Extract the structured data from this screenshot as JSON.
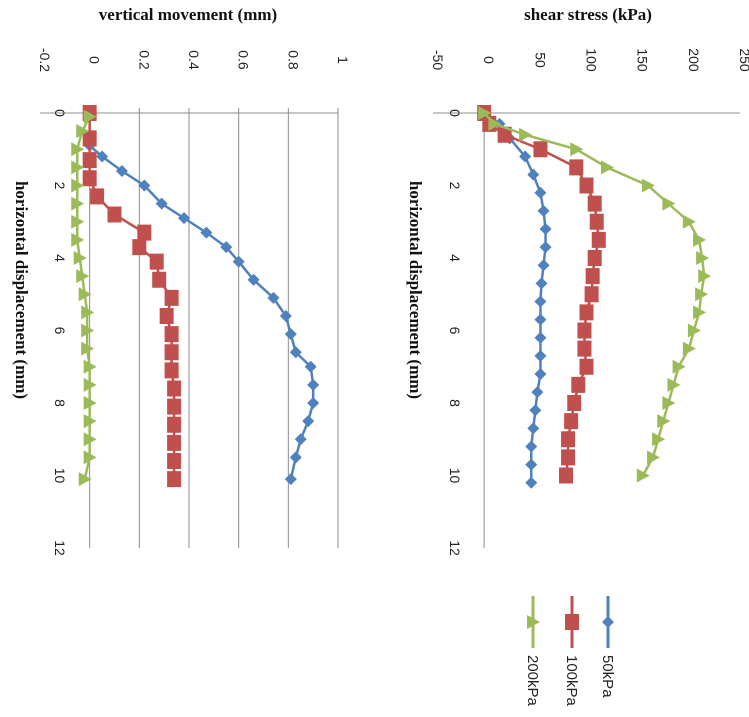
{
  "chart_data": [
    {
      "type": "line",
      "title": "",
      "ylabel": "vertical movement (mm)",
      "xlabel": "horizontal displacement (mm)",
      "xlim": [
        0,
        12
      ],
      "ylim": [
        -0.2,
        1
      ],
      "x_ticks": [
        "0",
        "2",
        "4",
        "6",
        "8",
        "10",
        "12"
      ],
      "y_ticks": [
        "-0.2",
        "0",
        "0.2",
        "0.4",
        "0.6",
        "0.8",
        "1"
      ],
      "grid": true,
      "series": [
        {
          "name": "50kPa",
          "marker": "diamond",
          "x": [
            0.9,
            1.2,
            1.6,
            2.0,
            2.5,
            2.9,
            3.3,
            3.7,
            4.1,
            4.6,
            5.1,
            5.6,
            6.1,
            6.6,
            7.0,
            7.5,
            8.0,
            8.5,
            9.0,
            9.5,
            10.1
          ],
          "y": [
            0.0,
            0.05,
            0.13,
            0.22,
            0.29,
            0.38,
            0.47,
            0.55,
            0.6,
            0.66,
            0.74,
            0.79,
            0.81,
            0.83,
            0.89,
            0.9,
            0.9,
            0.88,
            0.85,
            0.83,
            0.81
          ]
        },
        {
          "name": "100kPa",
          "marker": "square",
          "x": [
            0.0,
            0.7,
            1.3,
            1.8,
            2.3,
            2.8,
            3.3,
            3.7,
            4.1,
            4.6,
            5.1,
            5.6,
            6.1,
            6.6,
            7.1,
            7.6,
            8.1,
            8.6,
            9.1,
            9.6,
            10.1
          ],
          "y": [
            0.0,
            0.0,
            0.0,
            0.0,
            0.03,
            0.1,
            0.22,
            0.2,
            0.27,
            0.28,
            0.33,
            0.31,
            0.33,
            0.33,
            0.33,
            0.34,
            0.34,
            0.34,
            0.34,
            0.34,
            0.34
          ],
          "color": "#c0504d"
        },
        {
          "name": "200kPa",
          "marker": "triangle",
          "x": [
            0.1,
            0.5,
            1.0,
            1.5,
            2.0,
            2.5,
            3.0,
            3.5,
            4.0,
            4.5,
            5.0,
            5.5,
            6.0,
            6.5,
            7.0,
            7.5,
            8.0,
            8.5,
            9.0,
            9.5,
            10.1
          ],
          "y": [
            0.0,
            -0.03,
            -0.05,
            -0.05,
            -0.05,
            -0.05,
            -0.05,
            -0.05,
            -0.04,
            -0.03,
            -0.02,
            -0.01,
            -0.01,
            -0.01,
            0.0,
            0.0,
            0.0,
            0.0,
            0.0,
            0.0,
            -0.02
          ],
          "color": "#9bbb59"
        }
      ]
    },
    {
      "type": "line",
      "title": "",
      "ylabel": "shear stress (kPa)",
      "xlabel": "horizontal displacement (mm)",
      "xlim": [
        0,
        12
      ],
      "ylim": [
        -50,
        250
      ],
      "x_ticks": [
        "0",
        "2",
        "4",
        "6",
        "8",
        "10",
        "12"
      ],
      "y_ticks": [
        "-50",
        "0",
        "50",
        "100",
        "150",
        "200",
        "250"
      ],
      "grid": false,
      "series": [
        {
          "name": "50kPa",
          "marker": "diamond",
          "x": [
            0.0,
            0.3,
            0.7,
            1.2,
            1.7,
            2.2,
            2.7,
            3.2,
            3.7,
            4.2,
            4.7,
            5.2,
            5.7,
            6.2,
            6.7,
            7.2,
            7.7,
            8.2,
            8.7,
            9.2,
            9.7,
            10.2
          ],
          "y": [
            0,
            15,
            25,
            40,
            48,
            55,
            58,
            60,
            60,
            58,
            56,
            55,
            55,
            55,
            55,
            55,
            52,
            50,
            48,
            46,
            46,
            46
          ],
          "color": "#4f81bd"
        },
        {
          "name": "100kPa",
          "marker": "square",
          "x": [
            0.0,
            0.3,
            0.6,
            1.0,
            1.5,
            2.0,
            2.5,
            3.0,
            3.5,
            4.0,
            4.5,
            5.0,
            5.5,
            6.0,
            6.5,
            7.0,
            7.5,
            8.0,
            8.5,
            9.0,
            9.5,
            10.0
          ],
          "y": [
            0,
            5,
            20,
            55,
            90,
            100,
            108,
            110,
            112,
            108,
            106,
            105,
            100,
            98,
            98,
            100,
            92,
            88,
            85,
            82,
            82,
            80
          ],
          "color": "#c0504d"
        },
        {
          "name": "200kPa",
          "marker": "triangle",
          "x": [
            0.0,
            0.3,
            0.6,
            1.0,
            1.5,
            2.0,
            2.5,
            3.0,
            3.5,
            4.0,
            4.5,
            5.0,
            5.5,
            6.0,
            6.5,
            7.0,
            7.5,
            8.0,
            8.5,
            9.0,
            9.5,
            10.0
          ],
          "y": [
            0,
            10,
            40,
            90,
            120,
            160,
            180,
            200,
            210,
            213,
            215,
            212,
            210,
            205,
            200,
            190,
            185,
            180,
            175,
            170,
            165,
            155
          ],
          "color": "#9bbb59"
        }
      ]
    }
  ],
  "legend": {
    "items": [
      {
        "label": "50kPa",
        "color": "#4f81bd",
        "marker": "diamond"
      },
      {
        "label": "100kPa",
        "color": "#c0504d",
        "marker": "square"
      },
      {
        "label": "200kPa",
        "color": "#9bbb59",
        "marker": "triangle"
      }
    ]
  }
}
